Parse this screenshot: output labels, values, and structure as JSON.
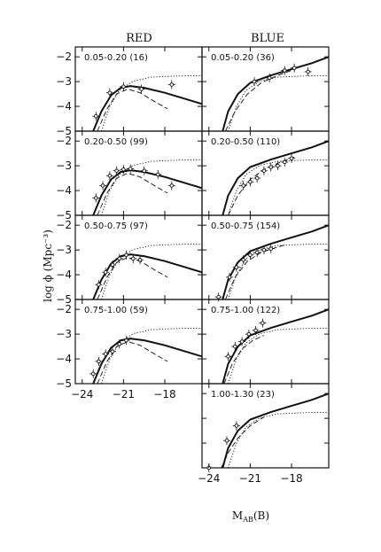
{
  "chart_data": {
    "type": "line",
    "column_titles": [
      "RED",
      "BLUE"
    ],
    "xlabel": "M_AB(B)",
    "xlabel_main": "M",
    "xlabel_sub": "AB",
    "xlabel_tail": "(B)",
    "ylabel": "log ϕ  (Mpc⁻³)",
    "xlim": [
      -24.5,
      -15.3
    ],
    "ylim": [
      -5,
      -1.6
    ],
    "x_ticks": [
      -24,
      -21,
      -18
    ],
    "x_tick_labels": [
      "−24",
      "−21",
      "−18"
    ],
    "y_ticks": [
      -2,
      -3,
      -4,
      -5
    ],
    "y_tick_labels": [
      "−2",
      "−3",
      "−4",
      "−5"
    ],
    "grid": false,
    "panels": [
      {
        "column": "RED",
        "label": "0.05-0.20 (16)",
        "curves": {
          "solid": [
            [
              -23.2,
              -5.0
            ],
            [
              -22.6,
              -4.2
            ],
            [
              -21.9,
              -3.55
            ],
            [
              -21.2,
              -3.25
            ],
            [
              -20.5,
              -3.18
            ],
            [
              -19.5,
              -3.25
            ],
            [
              -18,
              -3.45
            ],
            [
              -16.5,
              -3.7
            ],
            [
              -15.3,
              -3.9
            ]
          ],
          "dotted": [
            [
              -22.6,
              -5.0
            ],
            [
              -22.0,
              -4.0
            ],
            [
              -21.3,
              -3.35
            ],
            [
              -20.3,
              -2.98
            ],
            [
              -19,
              -2.82
            ],
            [
              -17,
              -2.77
            ],
            [
              -15.3,
              -2.76
            ]
          ],
          "dashed": [
            [
              -22.9,
              -5.0
            ],
            [
              -22.2,
              -4.1
            ],
            [
              -21.5,
              -3.5
            ],
            [
              -20.7,
              -3.3
            ],
            [
              -19.8,
              -3.45
            ],
            [
              -18.6,
              -3.85
            ],
            [
              -17.8,
              -4.1
            ]
          ]
        },
        "points": [
          [
            -23.0,
            -4.4
          ],
          [
            -22.0,
            -3.45
          ],
          [
            -21.0,
            -3.2
          ],
          [
            -19.7,
            -3.3
          ],
          [
            -17.5,
            -3.12
          ]
        ]
      },
      {
        "column": "BLUE",
        "label": "0.05-0.20 (36)",
        "curves": {
          "solid": [
            [
              -23.0,
              -5.0
            ],
            [
              -22.6,
              -4.2
            ],
            [
              -21.9,
              -3.5
            ],
            [
              -21,
              -3.05
            ],
            [
              -19.5,
              -2.75
            ],
            [
              -18,
              -2.5
            ],
            [
              -16.5,
              -2.25
            ],
            [
              -15.3,
              -2.0
            ]
          ],
          "dotted": [
            [
              -22.6,
              -5.0
            ],
            [
              -22.0,
              -4.0
            ],
            [
              -21.3,
              -3.35
            ],
            [
              -20.3,
              -2.98
            ],
            [
              -19,
              -2.82
            ],
            [
              -17,
              -2.77
            ],
            [
              -15.3,
              -2.76
            ]
          ],
          "dashed": [
            [
              -22.8,
              -5.0
            ],
            [
              -22.1,
              -4.2
            ],
            [
              -21.2,
              -3.5
            ],
            [
              -20.2,
              -3.05
            ],
            [
              -19,
              -2.75
            ],
            [
              -18,
              -2.55
            ]
          ]
        },
        "points": [
          [
            -20.7,
            -3.0
          ],
          [
            -19.6,
            -2.85
          ],
          [
            -18.5,
            -2.55
          ],
          [
            -17.8,
            -2.45
          ],
          [
            -16.8,
            -2.6
          ]
        ]
      },
      {
        "column": "RED",
        "label": "0.20-0.50 (99)",
        "curves": {
          "solid": [
            [
              -23.2,
              -5.0
            ],
            [
              -22.6,
              -4.2
            ],
            [
              -21.9,
              -3.55
            ],
            [
              -21.2,
              -3.25
            ],
            [
              -20.5,
              -3.18
            ],
            [
              -19.5,
              -3.25
            ],
            [
              -18,
              -3.45
            ],
            [
              -16.5,
              -3.7
            ],
            [
              -15.3,
              -3.9
            ]
          ],
          "dotted": [
            [
              -22.6,
              -5.0
            ],
            [
              -22.0,
              -4.0
            ],
            [
              -21.3,
              -3.35
            ],
            [
              -20.3,
              -2.98
            ],
            [
              -19,
              -2.82
            ],
            [
              -17,
              -2.77
            ],
            [
              -15.3,
              -2.76
            ]
          ],
          "dashed": [
            [
              -22.9,
              -5.0
            ],
            [
              -22.2,
              -4.1
            ],
            [
              -21.5,
              -3.5
            ],
            [
              -20.7,
              -3.3
            ],
            [
              -19.8,
              -3.45
            ],
            [
              -18.6,
              -3.85
            ],
            [
              -17.8,
              -4.1
            ]
          ]
        },
        "points": [
          [
            -23.0,
            -4.3
          ],
          [
            -22.5,
            -3.8
          ],
          [
            -22.0,
            -3.4
          ],
          [
            -21.5,
            -3.2
          ],
          [
            -21.0,
            -3.15
          ],
          [
            -20.5,
            -3.12
          ],
          [
            -19.5,
            -3.2
          ],
          [
            -18.5,
            -3.35
          ],
          [
            -17.5,
            -3.8
          ]
        ]
      },
      {
        "column": "BLUE",
        "label": "0.20-0.50 (110)",
        "curves": {
          "solid": [
            [
              -23.0,
              -5.0
            ],
            [
              -22.6,
              -4.2
            ],
            [
              -21.9,
              -3.5
            ],
            [
              -21,
              -3.05
            ],
            [
              -19.5,
              -2.75
            ],
            [
              -18,
              -2.5
            ],
            [
              -16.5,
              -2.25
            ],
            [
              -15.3,
              -2.0
            ]
          ],
          "dotted": [
            [
              -22.6,
              -5.0
            ],
            [
              -22.0,
              -4.0
            ],
            [
              -21.3,
              -3.35
            ],
            [
              -20.3,
              -2.98
            ],
            [
              -19,
              -2.82
            ],
            [
              -17,
              -2.77
            ],
            [
              -15.3,
              -2.76
            ]
          ],
          "dashed": [
            [
              -22.6,
              -5.0
            ],
            [
              -21.9,
              -4.2
            ],
            [
              -21.0,
              -3.55
            ],
            [
              -20.0,
              -3.15
            ],
            [
              -18.8,
              -2.85
            ],
            [
              -17.8,
              -2.65
            ]
          ]
        },
        "points": [
          [
            -21.5,
            -3.8
          ],
          [
            -21.0,
            -3.65
          ],
          [
            -20.5,
            -3.5
          ],
          [
            -20.0,
            -3.2
          ],
          [
            -19.5,
            -3.05
          ],
          [
            -19.0,
            -3.0
          ],
          [
            -18.5,
            -2.85
          ],
          [
            -18.0,
            -2.7
          ]
        ]
      },
      {
        "column": "RED",
        "label": "0.50-0.75 (97)",
        "curves": {
          "solid": [
            [
              -23.2,
              -5.0
            ],
            [
              -22.6,
              -4.2
            ],
            [
              -21.9,
              -3.55
            ],
            [
              -21.2,
              -3.25
            ],
            [
              -20.5,
              -3.18
            ],
            [
              -19.5,
              -3.25
            ],
            [
              -18,
              -3.45
            ],
            [
              -16.5,
              -3.7
            ],
            [
              -15.3,
              -3.9
            ]
          ],
          "dotted": [
            [
              -22.6,
              -5.0
            ],
            [
              -22.0,
              -4.0
            ],
            [
              -21.3,
              -3.35
            ],
            [
              -20.3,
              -2.98
            ],
            [
              -19,
              -2.82
            ],
            [
              -17,
              -2.77
            ],
            [
              -15.3,
              -2.76
            ]
          ],
          "dashed": [
            [
              -22.9,
              -5.0
            ],
            [
              -22.2,
              -4.1
            ],
            [
              -21.5,
              -3.5
            ],
            [
              -20.7,
              -3.3
            ],
            [
              -19.8,
              -3.45
            ],
            [
              -18.6,
              -3.85
            ],
            [
              -17.8,
              -4.1
            ]
          ]
        },
        "points": [
          [
            -22.8,
            -4.4
          ],
          [
            -22.3,
            -3.9
          ],
          [
            -21.8,
            -3.6
          ],
          [
            -21.3,
            -3.35
          ],
          [
            -20.8,
            -3.2
          ],
          [
            -20.3,
            -3.35
          ],
          [
            -19.8,
            -3.4
          ]
        ]
      },
      {
        "column": "BLUE",
        "label": "0.50-0.75 (154)",
        "curves": {
          "solid": [
            [
              -23.0,
              -5.0
            ],
            [
              -22.6,
              -4.2
            ],
            [
              -21.9,
              -3.5
            ],
            [
              -21,
              -3.05
            ],
            [
              -19.5,
              -2.75
            ],
            [
              -18,
              -2.5
            ],
            [
              -16.5,
              -2.25
            ],
            [
              -15.3,
              -2.0
            ]
          ],
          "dotted": [
            [
              -22.6,
              -5.0
            ],
            [
              -22.0,
              -4.0
            ],
            [
              -21.3,
              -3.35
            ],
            [
              -20.3,
              -2.98
            ],
            [
              -19,
              -2.82
            ],
            [
              -17,
              -2.77
            ],
            [
              -15.3,
              -2.76
            ]
          ],
          "dashed": [
            [
              -22.8,
              -5.0
            ],
            [
              -22.1,
              -4.1
            ],
            [
              -21.2,
              -3.45
            ],
            [
              -20.2,
              -3.1
            ],
            [
              -19.1,
              -2.9
            ],
            [
              -18.5,
              -2.8
            ]
          ]
        },
        "points": [
          [
            -23.3,
            -4.9
          ],
          [
            -22.5,
            -4.1
          ],
          [
            -22.0,
            -3.7
          ],
          [
            -21.5,
            -3.4
          ],
          [
            -21.0,
            -3.2
          ],
          [
            -20.5,
            -3.1
          ],
          [
            -20.0,
            -3.0
          ],
          [
            -19.5,
            -2.95
          ]
        ]
      },
      {
        "column": "RED",
        "label": "0.75-1.00 (59)",
        "curves": {
          "solid": [
            [
              -23.2,
              -5.0
            ],
            [
              -22.6,
              -4.2
            ],
            [
              -21.9,
              -3.55
            ],
            [
              -21.2,
              -3.25
            ],
            [
              -20.5,
              -3.18
            ],
            [
              -19.5,
              -3.25
            ],
            [
              -18,
              -3.45
            ],
            [
              -16.5,
              -3.7
            ],
            [
              -15.3,
              -3.9
            ]
          ],
          "dotted": [
            [
              -22.6,
              -5.0
            ],
            [
              -22.0,
              -4.0
            ],
            [
              -21.3,
              -3.35
            ],
            [
              -20.3,
              -2.98
            ],
            [
              -19,
              -2.82
            ],
            [
              -17,
              -2.77
            ],
            [
              -15.3,
              -2.76
            ]
          ],
          "dashed": [
            [
              -22.9,
              -5.0
            ],
            [
              -22.2,
              -4.1
            ],
            [
              -21.5,
              -3.5
            ],
            [
              -20.7,
              -3.3
            ],
            [
              -19.8,
              -3.45
            ],
            [
              -18.6,
              -3.85
            ],
            [
              -17.8,
              -4.1
            ]
          ]
        },
        "points": [
          [
            -23.2,
            -4.6
          ],
          [
            -22.8,
            -4.1
          ],
          [
            -22.3,
            -3.8
          ],
          [
            -21.8,
            -3.7
          ],
          [
            -21.3,
            -3.4
          ],
          [
            -20.8,
            -3.25
          ]
        ]
      },
      {
        "column": "BLUE",
        "label": "0.75-1.00 (122)",
        "curves": {
          "solid": [
            [
              -23.0,
              -5.0
            ],
            [
              -22.6,
              -4.2
            ],
            [
              -21.9,
              -3.5
            ],
            [
              -21,
              -3.05
            ],
            [
              -19.5,
              -2.75
            ],
            [
              -18,
              -2.5
            ],
            [
              -16.5,
              -2.25
            ],
            [
              -15.3,
              -2.0
            ]
          ],
          "dotted": [
            [
              -22.6,
              -5.0
            ],
            [
              -22.0,
              -4.0
            ],
            [
              -21.3,
              -3.35
            ],
            [
              -20.3,
              -2.98
            ],
            [
              -19,
              -2.82
            ],
            [
              -17,
              -2.77
            ],
            [
              -15.3,
              -2.76
            ]
          ],
          "dashed": [
            [
              -22.9,
              -5.0
            ],
            [
              -22.3,
              -4.2
            ],
            [
              -21.6,
              -3.6
            ],
            [
              -20.8,
              -3.25
            ],
            [
              -20.0,
              -3.05
            ]
          ]
        },
        "points": [
          [
            -22.6,
            -3.9
          ],
          [
            -22.1,
            -3.5
          ],
          [
            -21.6,
            -3.3
          ],
          [
            -21.1,
            -3.0
          ],
          [
            -20.6,
            -2.85
          ],
          [
            -20.1,
            -2.55
          ]
        ]
      },
      {
        "column": "BLUE",
        "label": "1.00-1.30 (23)",
        "curves": {
          "solid": [
            [
              -23.0,
              -5.0
            ],
            [
              -22.6,
              -4.2
            ],
            [
              -21.9,
              -3.5
            ],
            [
              -21,
              -3.05
            ],
            [
              -19.5,
              -2.75
            ],
            [
              -18,
              -2.5
            ],
            [
              -16.5,
              -2.25
            ],
            [
              -15.3,
              -2.0
            ]
          ],
          "dotted": [
            [
              -22.6,
              -5.0
            ],
            [
              -22.0,
              -4.0
            ],
            [
              -21.3,
              -3.35
            ],
            [
              -20.3,
              -2.98
            ],
            [
              -19,
              -2.82
            ],
            [
              -17,
              -2.77
            ],
            [
              -15.3,
              -2.76
            ]
          ],
          "dashed": [
            [
              -23.1,
              -5.0
            ],
            [
              -22.6,
              -4.4
            ],
            [
              -21.9,
              -3.8
            ],
            [
              -21.0,
              -3.3
            ],
            [
              -20.0,
              -2.95
            ]
          ]
        },
        "points": [
          [
            -24.0,
            -5.0
          ],
          [
            -22.7,
            -3.9
          ],
          [
            -22.0,
            -3.3
          ]
        ]
      }
    ]
  }
}
